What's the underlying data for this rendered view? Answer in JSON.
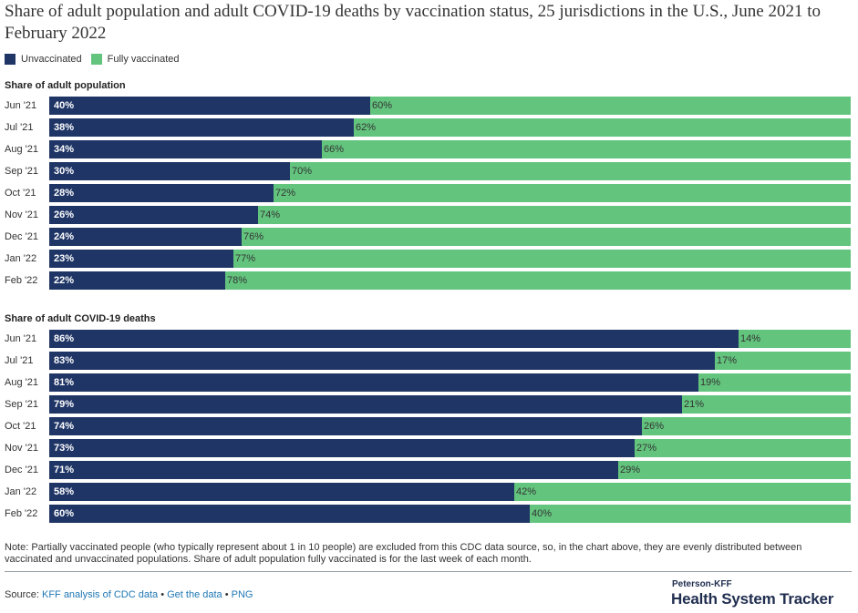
{
  "title": "Share of adult population and adult COVID-19 deaths by vaccination status, 25 jurisdictions in the U.S., June 2021 to February 2022",
  "legend": {
    "unvaccinated": "Unvaccinated",
    "vaccinated": "Fully vaccinated"
  },
  "colors": {
    "unvaccinated": "#1f3566",
    "vaccinated": "#63c47e"
  },
  "chart_data": [
    {
      "type": "bar",
      "orientation": "horizontal",
      "stacked": true,
      "normalized_percent": true,
      "title": "Share of adult population",
      "categories": [
        "Jun '21",
        "Jul '21",
        "Aug '21",
        "Sep '21",
        "Oct '21",
        "Nov '21",
        "Dec '21",
        "Jan '22",
        "Feb '22"
      ],
      "series": [
        {
          "name": "Unvaccinated",
          "values": [
            40,
            38,
            34,
            30,
            28,
            26,
            24,
            23,
            22
          ],
          "labels": [
            "40%",
            "38%",
            "34%",
            "30%",
            "28%",
            "26%",
            "24%",
            "23%",
            "22%"
          ]
        },
        {
          "name": "Fully vaccinated",
          "values": [
            60,
            62,
            66,
            70,
            72,
            74,
            76,
            77,
            78
          ],
          "labels": [
            "60%",
            "62%",
            "66%",
            "70%",
            "72%",
            "74%",
            "76%",
            "77%",
            "78%"
          ]
        }
      ],
      "xlim": [
        0,
        100
      ],
      "grid": false,
      "legend_position": "top-left"
    },
    {
      "type": "bar",
      "orientation": "horizontal",
      "stacked": true,
      "normalized_percent": true,
      "title": "Share of adult COVID-19 deaths",
      "categories": [
        "Jun '21",
        "Jul '21",
        "Aug '21",
        "Sep '21",
        "Oct '21",
        "Nov '21",
        "Dec '21",
        "Jan '22",
        "Feb '22"
      ],
      "series": [
        {
          "name": "Unvaccinated",
          "values": [
            86,
            83,
            81,
            79,
            74,
            73,
            71,
            58,
            60
          ],
          "labels": [
            "86%",
            "83%",
            "81%",
            "79%",
            "74%",
            "73%",
            "71%",
            "58%",
            "60%"
          ]
        },
        {
          "name": "Fully vaccinated",
          "values": [
            14,
            17,
            19,
            21,
            26,
            27,
            29,
            42,
            40
          ],
          "labels": [
            "14%",
            "17%",
            "19%",
            "21%",
            "26%",
            "27%",
            "29%",
            "42%",
            "40%"
          ]
        }
      ],
      "xlim": [
        0,
        100
      ],
      "grid": false,
      "legend_position": "top-left"
    }
  ],
  "note": "Note: Partially vaccinated people (who typically represent about 1 in 10 people) are excluded from this CDC data source, so, in the chart above, they are evenly distributed between vaccinated and unvaccinated populations. Share of adult population fully vaccinated is for the last week of each month.",
  "source": {
    "prefix": "Source:",
    "link1": "KFF analysis of CDC data",
    "sep1": "•",
    "link2": "Get the data",
    "sep2": "•",
    "link3": "PNG"
  },
  "brand": {
    "small": "Peterson-KFF",
    "big": "Health System Tracker"
  }
}
